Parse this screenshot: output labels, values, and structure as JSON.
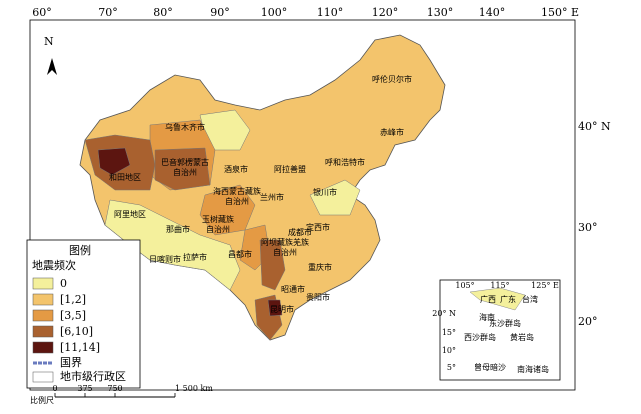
{
  "map": {
    "longitude_labels": [
      "60°",
      "70°",
      "80°",
      "90°",
      "100°",
      "110°",
      "120°",
      "130°",
      "140°",
      "150° E"
    ],
    "latitude_labels": [
      "40° N",
      "30°",
      "20°"
    ],
    "north": "N",
    "legend": {
      "title": "图例",
      "subtitle": "地震频次",
      "classes": [
        {
          "label": "0",
          "color": "#f4f09c"
        },
        {
          "label": "[1,2]",
          "color": "#f3c46c"
        },
        {
          "label": "[3,5]",
          "color": "#e49a44"
        },
        {
          "label": "[6,10]",
          "color": "#a9612f"
        },
        {
          "label": "[11,14]",
          "color": "#5c1510"
        }
      ],
      "border": "国界",
      "admin": "地市级行政区"
    },
    "scale": {
      "title": "比例尺",
      "ticks": [
        "0",
        "375",
        "750",
        "1 500 km"
      ]
    },
    "cities": [
      "呼伦贝尔市",
      "赤峰市",
      "乌鲁木齐市",
      "巴音郭楞蒙古",
      "自治州",
      "呼和浩特市",
      "酒泉市",
      "阿拉善盟",
      "和田地区",
      "海西蒙古藏族",
      "自治州",
      "兰州市",
      "银川市",
      "阿里地区",
      "那曲市",
      "玉树藏族",
      "自治州",
      "定西市",
      "日喀则市",
      "拉萨市",
      "阿坝藏族羌族",
      "自治州",
      "昌都市",
      "成都市",
      "重庆市",
      "昭通市",
      "贵阳市",
      "昆明市"
    ],
    "inset": {
      "lon_labels": [
        "105°",
        "115°",
        "125° E"
      ],
      "lat_labels": [
        "20° N",
        "15°",
        "10°",
        "5°"
      ],
      "labels": [
        "广西",
        "广东",
        "台湾",
        "海南",
        "东沙群岛",
        "西沙群岛",
        "黄岩岛",
        "曾母暗沙",
        "南海诸岛"
      ]
    }
  }
}
